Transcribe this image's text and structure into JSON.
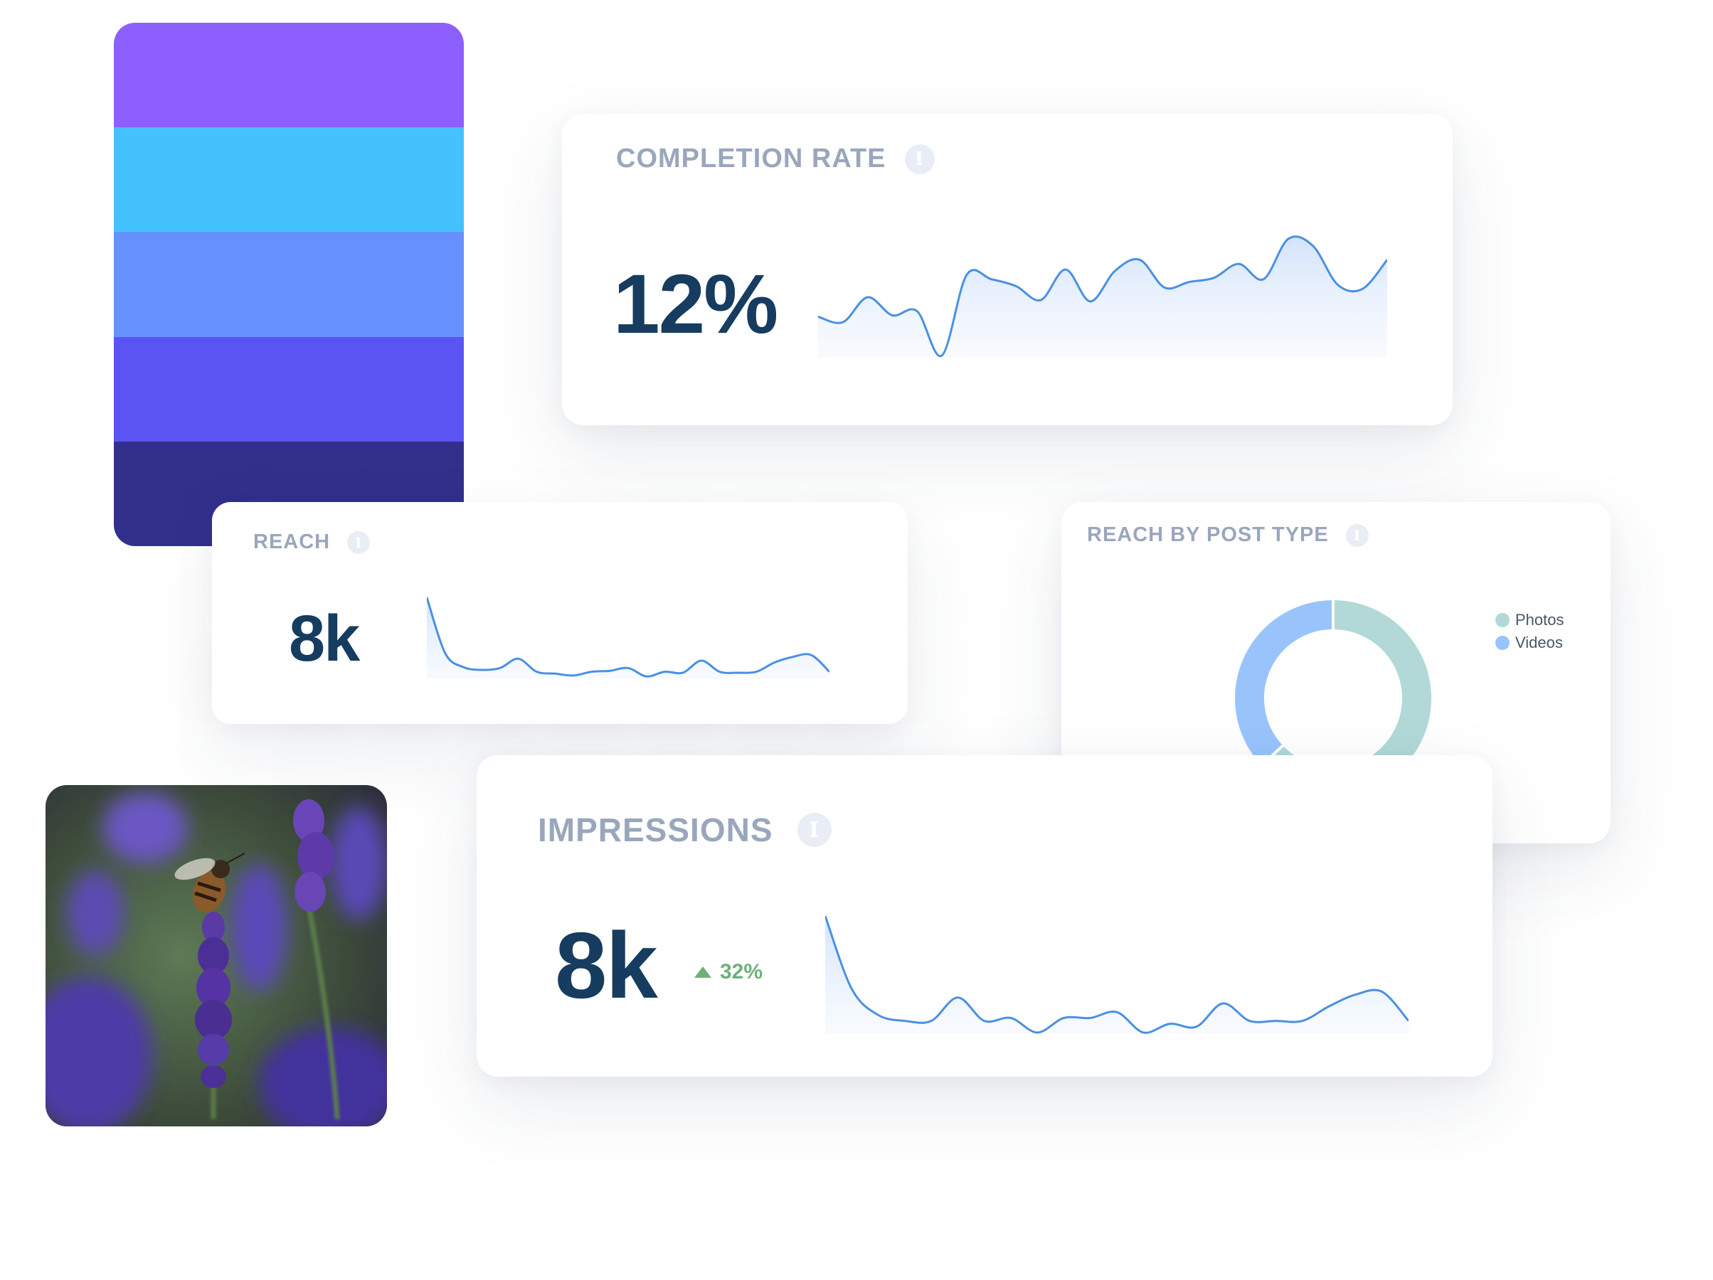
{
  "palette": {
    "colors": [
      "#8d5ffe",
      "#44c2fd",
      "#6690fc",
      "#5b54f2",
      "#33308c"
    ]
  },
  "completion_rate": {
    "title": "COMPLETION RATE",
    "value": "12%",
    "info_icon": "info-icon",
    "trend_points": [
      0.06,
      0.02,
      0.2,
      0.07,
      0.1,
      -0.22,
      0.36,
      0.33,
      0.28,
      0.18,
      0.4,
      0.17,
      0.39,
      0.47,
      0.27,
      0.31,
      0.34,
      0.44,
      0.33,
      0.62,
      0.57,
      0.29,
      0.26,
      0.47
    ]
  },
  "reach": {
    "title": "REACH",
    "value": "8k",
    "info_icon": "info-icon",
    "trend_points": [
      0.9,
      0.3,
      0.15,
      0.12,
      0.14,
      0.24,
      0.1,
      0.08,
      0.06,
      0.1,
      0.11,
      0.14,
      0.05,
      0.1,
      0.09,
      0.22,
      0.1,
      0.09,
      0.1,
      0.2,
      0.26,
      0.28,
      0.1
    ]
  },
  "reach_by_post_type": {
    "title": "REACH BY POST TYPE",
    "info_icon": "info-icon",
    "legend": [
      {
        "label": "Photos",
        "color": "#b2d8d8"
      },
      {
        "label": "Videos",
        "color": "#99c4fb"
      }
    ]
  },
  "impressions": {
    "title": "IMPRESSIONS",
    "value": "8k",
    "change": "32%",
    "change_color": "#6fb07a",
    "info_icon": "info-icon",
    "trend_points": [
      0.9,
      0.4,
      0.22,
      0.18,
      0.18,
      0.34,
      0.18,
      0.2,
      0.1,
      0.2,
      0.2,
      0.24,
      0.1,
      0.16,
      0.14,
      0.3,
      0.18,
      0.18,
      0.18,
      0.28,
      0.36,
      0.38,
      0.18
    ]
  },
  "chart_data": [
    {
      "type": "pie",
      "title": "REACH BY POST TYPE",
      "categories": [
        "Photos",
        "Videos"
      ],
      "values": [
        63,
        37
      ],
      "colors": [
        "#b2d8d8",
        "#99c4fb"
      ],
      "donut": true,
      "legend_position": "top-right"
    }
  ],
  "photo": {
    "subject": "photo-image"
  }
}
